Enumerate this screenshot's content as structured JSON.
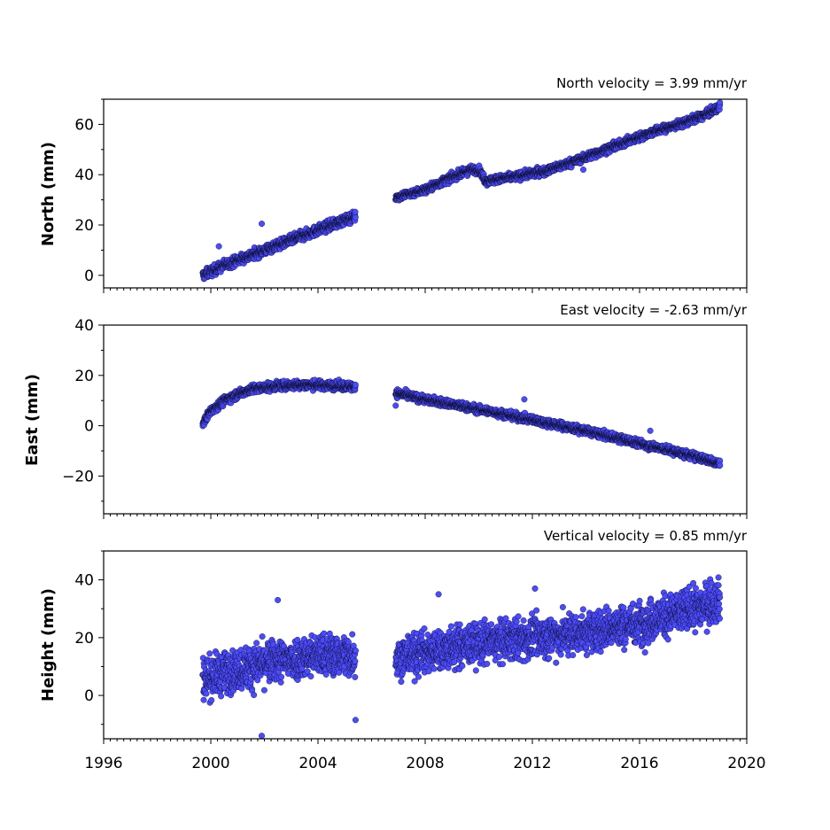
{
  "chart_data": [
    {
      "type": "scatter",
      "panel": "north",
      "title": "North velocity = 3.99 mm/yr",
      "ylabel": "North (mm)",
      "xlim": [
        1996,
        2020
      ],
      "ylim": [
        -5,
        70
      ],
      "yticks": [
        0,
        20,
        40,
        60
      ],
      "ytick_labels": [
        "0",
        "20",
        "40",
        "60"
      ],
      "x_tick_labels_visible": false,
      "color": "#4b4bff",
      "segments": [
        {
          "x": [
            1999.7,
            2000.5,
            2001.5,
            2002.5,
            2003.5,
            2004.5,
            2005.4
          ],
          "y": [
            0,
            4,
            8,
            12,
            16,
            20,
            23.5
          ],
          "spread": 1.5
        },
        {
          "x": [
            2006.9,
            2008.0,
            2009.0,
            2009.7,
            2010.0,
            2010.3
          ],
          "y": [
            31,
            34,
            39,
            42,
            42,
            37
          ],
          "spread": 1.2
        },
        {
          "x": [
            2010.3,
            2011.5,
            2012.5,
            2013.5,
            2014.5,
            2015.5,
            2016.5,
            2017.5,
            2018.5,
            2019.0
          ],
          "y": [
            37.5,
            39.5,
            41.5,
            45,
            49,
            53,
            57,
            60,
            64,
            67
          ],
          "spread": 1.2
        }
      ],
      "outliers": [
        {
          "x": 2001.9,
          "y": 20.5
        },
        {
          "x": 2000.3,
          "y": 11.5
        },
        {
          "x": 2013.9,
          "y": 42
        }
      ]
    },
    {
      "type": "scatter",
      "panel": "east",
      "title": "East velocity = -2.63 mm/yr",
      "ylabel": "East (mm)",
      "xlim": [
        1996,
        2020
      ],
      "ylim": [
        -35,
        40
      ],
      "yticks": [
        -20,
        0,
        20,
        40
      ],
      "ytick_labels": [
        "−20",
        "0",
        "20",
        "40"
      ],
      "x_tick_labels_visible": false,
      "color": "#4b4bff",
      "segments": [
        {
          "x": [
            1999.7,
            2000.0,
            2000.5,
            2001.0,
            2001.5,
            2002.5,
            2003.5,
            2004.5,
            2005.4
          ],
          "y": [
            1,
            6,
            10,
            12.5,
            14.5,
            15.8,
            16.3,
            16,
            15.5
          ],
          "spread": 1.3
        },
        {
          "x": [
            2006.9,
            2008.0,
            2009.0,
            2010.0,
            2011.0,
            2012.0,
            2013.0,
            2014.0,
            2015.0,
            2016.0,
            2017.0,
            2018.0,
            2019.0
          ],
          "y": [
            13,
            10.5,
            8.5,
            6.5,
            4.5,
            2.3,
            0.2,
            -2,
            -4.5,
            -7,
            -9.5,
            -12,
            -15
          ],
          "spread": 1.2
        }
      ],
      "outliers": [
        {
          "x": 2011.7,
          "y": 10.5
        },
        {
          "x": 2016.4,
          "y": -2
        },
        {
          "x": 2006.9,
          "y": 8
        }
      ]
    },
    {
      "type": "scatter",
      "panel": "height",
      "title": "Vertical velocity = 0.85 mm/yr",
      "ylabel": "Height (mm)",
      "xlim": [
        1996,
        2020
      ],
      "ylim": [
        -15,
        50
      ],
      "yticks": [
        0,
        20,
        40
      ],
      "ytick_labels": [
        "0",
        "20",
        "40"
      ],
      "xticks": [
        1996,
        2000,
        2004,
        2008,
        2012,
        2016,
        2020
      ],
      "xtick_labels": [
        "1996",
        "2000",
        "2004",
        "2008",
        "2012",
        "2016",
        "2020"
      ],
      "color": "#4b4bff",
      "segments": [
        {
          "x": [
            1999.7,
            2001.0,
            2002.5,
            2004.0,
            2005.4
          ],
          "y": [
            6,
            9,
            12,
            14,
            14
          ],
          "spread": 5.5
        },
        {
          "x": [
            2006.9,
            2008.0,
            2010.0,
            2012.0,
            2014.0,
            2016.0,
            2018.0,
            2019.0
          ],
          "y": [
            13,
            15,
            18,
            20,
            22,
            25,
            30,
            33
          ],
          "spread": 5.5
        }
      ],
      "outliers": [
        {
          "x": 2001.9,
          "y": -14
        },
        {
          "x": 2005.4,
          "y": -8.5
        },
        {
          "x": 2002.5,
          "y": 33
        },
        {
          "x": 2008.5,
          "y": 35
        },
        {
          "x": 2012.1,
          "y": 37
        }
      ]
    }
  ]
}
